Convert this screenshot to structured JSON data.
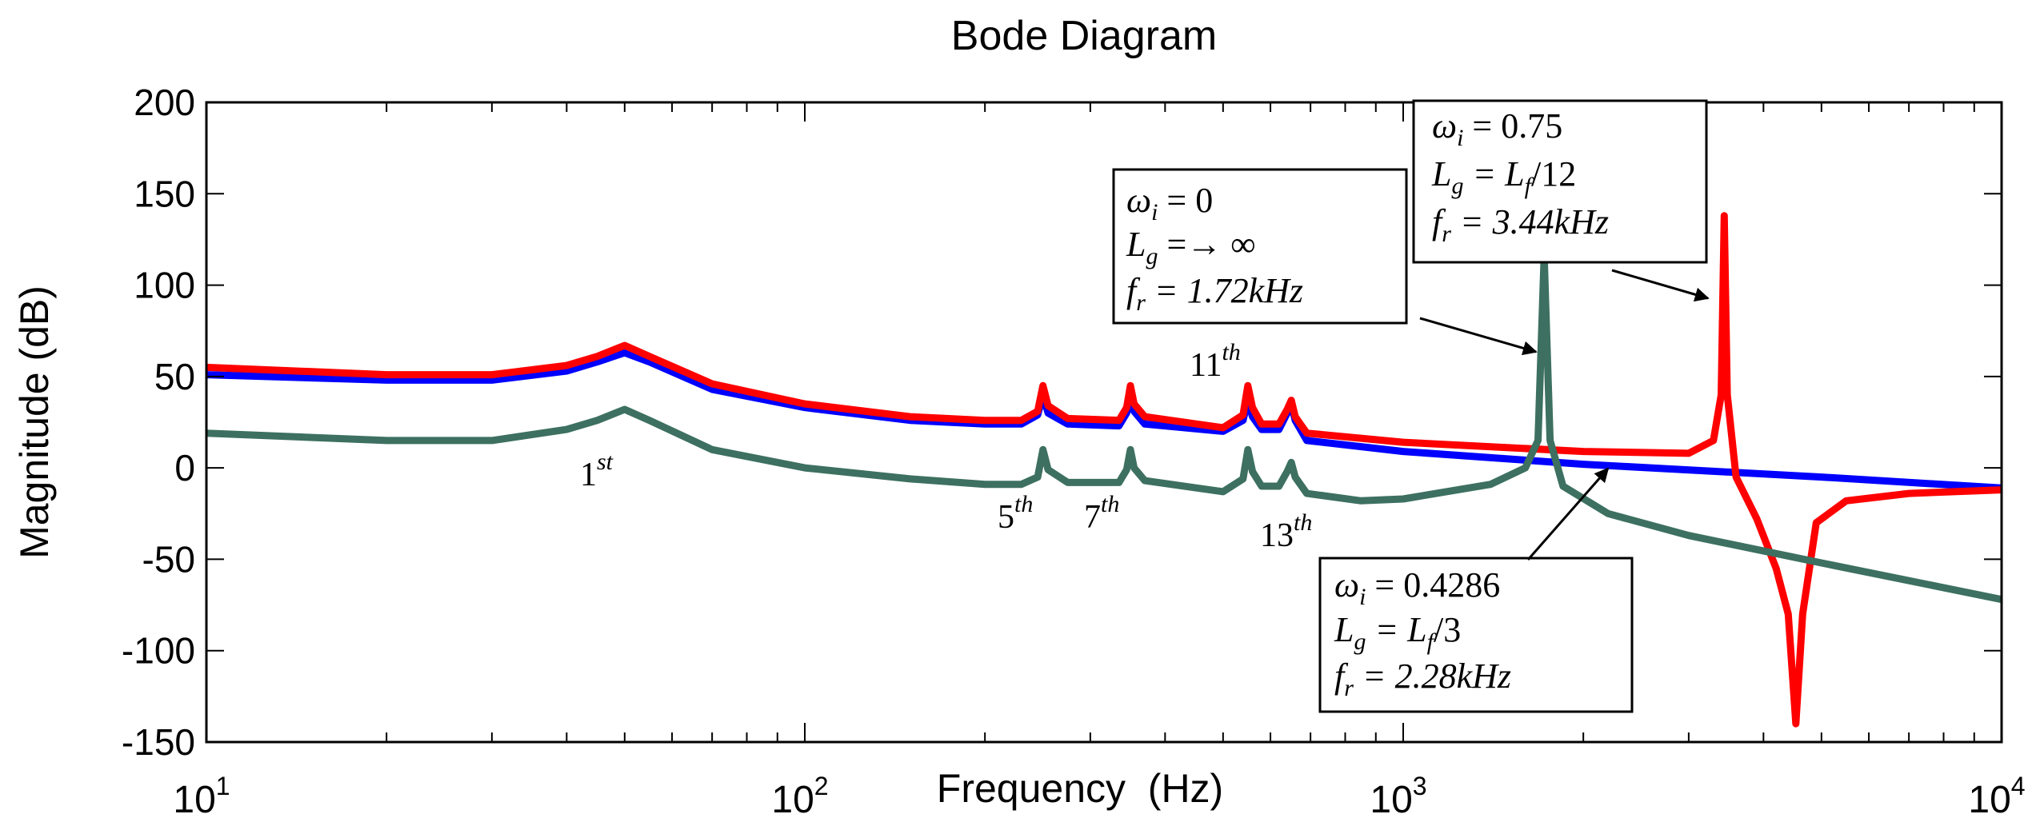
{
  "chart_data": {
    "type": "line",
    "title": "Bode Diagram",
    "xlabel": "Frequency  (Hz)",
    "ylabel": "Magnitude (dB)",
    "xscale": "log",
    "xlim": [
      10,
      10000
    ],
    "ylim": [
      -150,
      200
    ],
    "grid": false,
    "x_ticks": [
      {
        "base": "10",
        "exp": "1",
        "value": 10
      },
      {
        "base": "10",
        "exp": "2",
        "value": 100
      },
      {
        "base": "10",
        "exp": "3",
        "value": 1000
      },
      {
        "base": "10",
        "exp": "4",
        "value": 10000
      }
    ],
    "y_ticks": [
      200,
      150,
      100,
      50,
      0,
      -50,
      -100,
      -150
    ],
    "series": [
      {
        "name": "wi=0.4286",
        "color": "#0000ff",
        "points": [
          [
            10,
            51
          ],
          [
            20,
            48
          ],
          [
            30,
            48
          ],
          [
            40,
            53
          ],
          [
            45,
            58
          ],
          [
            50,
            63
          ],
          [
            55,
            58
          ],
          [
            70,
            43
          ],
          [
            100,
            33
          ],
          [
            150,
            26
          ],
          [
            200,
            24
          ],
          [
            230,
            24
          ],
          [
            245,
            29
          ],
          [
            250,
            40
          ],
          [
            255,
            30
          ],
          [
            275,
            24
          ],
          [
            335,
            23
          ],
          [
            345,
            30
          ],
          [
            350,
            39
          ],
          [
            355,
            31
          ],
          [
            370,
            24
          ],
          [
            500,
            20
          ],
          [
            540,
            26
          ],
          [
            550,
            37
          ],
          [
            560,
            28
          ],
          [
            580,
            21
          ],
          [
            620,
            21
          ],
          [
            640,
            30
          ],
          [
            650,
            35
          ],
          [
            660,
            26
          ],
          [
            690,
            15
          ],
          [
            1000,
            9
          ],
          [
            2000,
            2
          ],
          [
            5000,
            -5
          ],
          [
            10000,
            -11
          ]
        ]
      },
      {
        "name": "wi=0.75",
        "color": "#ff0000",
        "points": [
          [
            10,
            55
          ],
          [
            20,
            51
          ],
          [
            30,
            51
          ],
          [
            40,
            56
          ],
          [
            45,
            61
          ],
          [
            50,
            67
          ],
          [
            55,
            61
          ],
          [
            70,
            46
          ],
          [
            100,
            35
          ],
          [
            150,
            28
          ],
          [
            200,
            26
          ],
          [
            230,
            26
          ],
          [
            245,
            31
          ],
          [
            250,
            45
          ],
          [
            255,
            34
          ],
          [
            275,
            27
          ],
          [
            335,
            26
          ],
          [
            345,
            33
          ],
          [
            350,
            45
          ],
          [
            355,
            35
          ],
          [
            370,
            28
          ],
          [
            500,
            22
          ],
          [
            540,
            29
          ],
          [
            550,
            45
          ],
          [
            560,
            33
          ],
          [
            580,
            24
          ],
          [
            620,
            24
          ],
          [
            640,
            32
          ],
          [
            650,
            37
          ],
          [
            660,
            28
          ],
          [
            690,
            19
          ],
          [
            1000,
            14
          ],
          [
            2000,
            9
          ],
          [
            3000,
            8
          ],
          [
            3300,
            15
          ],
          [
            3400,
            40
          ],
          [
            3440,
            138
          ],
          [
            3480,
            40
          ],
          [
            3600,
            -5
          ],
          [
            3900,
            -28
          ],
          [
            4200,
            -55
          ],
          [
            4400,
            -80
          ],
          [
            4530,
            -140
          ],
          [
            4650,
            -80
          ],
          [
            4900,
            -30
          ],
          [
            5500,
            -18
          ],
          [
            7000,
            -14
          ],
          [
            10000,
            -12
          ]
        ]
      },
      {
        "name": "wi=0",
        "color": "#3d7060",
        "points": [
          [
            10,
            19
          ],
          [
            20,
            15
          ],
          [
            30,
            15
          ],
          [
            40,
            21
          ],
          [
            45,
            26
          ],
          [
            50,
            32
          ],
          [
            55,
            26
          ],
          [
            70,
            10
          ],
          [
            100,
            0
          ],
          [
            150,
            -6
          ],
          [
            200,
            -9
          ],
          [
            230,
            -9
          ],
          [
            245,
            -5
          ],
          [
            250,
            10
          ],
          [
            255,
            -1
          ],
          [
            275,
            -8
          ],
          [
            335,
            -8
          ],
          [
            345,
            -1
          ],
          [
            350,
            10
          ],
          [
            355,
            0
          ],
          [
            370,
            -7
          ],
          [
            500,
            -13
          ],
          [
            540,
            -6
          ],
          [
            550,
            10
          ],
          [
            560,
            -2
          ],
          [
            580,
            -10
          ],
          [
            620,
            -10
          ],
          [
            640,
            -2
          ],
          [
            650,
            3
          ],
          [
            660,
            -5
          ],
          [
            690,
            -14
          ],
          [
            850,
            -18
          ],
          [
            1000,
            -17
          ],
          [
            1400,
            -9
          ],
          [
            1600,
            0
          ],
          [
            1680,
            15
          ],
          [
            1720,
            116
          ],
          [
            1760,
            15
          ],
          [
            1850,
            -10
          ],
          [
            2200,
            -25
          ],
          [
            3000,
            -37
          ],
          [
            5000,
            -52
          ],
          [
            10000,
            -72
          ]
        ]
      }
    ],
    "harmonic_labels": [
      {
        "base": "1",
        "sup": "st"
      },
      {
        "base": "5",
        "sup": "th"
      },
      {
        "base": "7",
        "sup": "th"
      },
      {
        "base": "11",
        "sup": "th"
      },
      {
        "base": "13",
        "sup": "th"
      }
    ],
    "annotations": [
      {
        "id": "wi-0",
        "line1": {
          "sym": "ω",
          "sub": "i",
          "rest": " = 0"
        },
        "line2": {
          "sym": "L",
          "sub": "g",
          "rest": " =→ ∞"
        },
        "line3": {
          "sym": "f",
          "sub": "r",
          "rest": " = 1.72kHz"
        }
      },
      {
        "id": "wi-075",
        "line1": {
          "sym": "ω",
          "sub": "i",
          "rest": " = 0.75"
        },
        "line2": {
          "sym": "L",
          "sub": "g",
          "rest": " = L",
          "sub2": "f",
          "rest2": "/12"
        },
        "line3": {
          "sym": "f",
          "sub": "r",
          "rest": " = 3.44kHz"
        }
      },
      {
        "id": "wi-04286",
        "line1": {
          "sym": "ω",
          "sub": "i",
          "rest": " = 0.4286"
        },
        "line2": {
          "sym": "L",
          "sub": "g",
          "rest": " = L",
          "sub2": "f",
          "rest2": "/3"
        },
        "line3": {
          "sym": "f",
          "sub": "r",
          "rest": " = 2.28kHz"
        }
      }
    ]
  }
}
